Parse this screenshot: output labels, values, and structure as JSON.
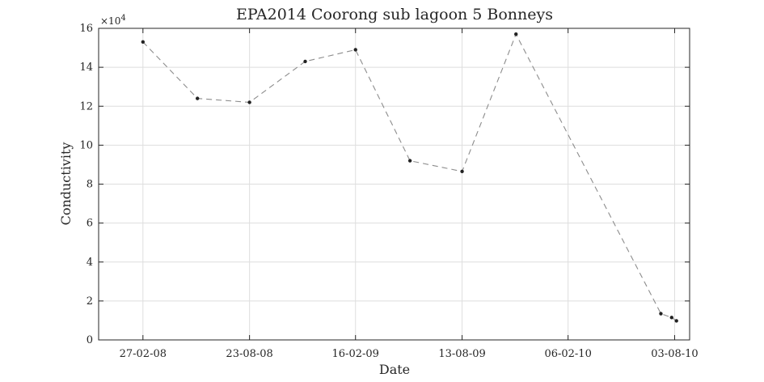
{
  "chart_data": {
    "type": "line",
    "title": "EPA2014 Coorong sub lagoon 5 Bonneys",
    "xlabel": "Date",
    "ylabel": "Conductivity",
    "y_multiplier_label": "×10",
    "y_multiplier_exponent": "4",
    "ylim": [
      0,
      160000
    ],
    "y_ticks": [
      0,
      20000,
      40000,
      60000,
      80000,
      100000,
      120000,
      140000,
      160000
    ],
    "y_tick_labels": [
      "0",
      "2",
      "4",
      "6",
      "8",
      "10",
      "12",
      "14",
      "16"
    ],
    "xlim": [
      "2007-12-15",
      "2010-08-28"
    ],
    "x_ticks": [
      "2008-02-27",
      "2008-08-23",
      "2009-02-16",
      "2009-08-13",
      "2010-02-06",
      "2010-08-03"
    ],
    "x_tick_labels": [
      "27-02-08",
      "23-08-08",
      "16-02-09",
      "13-08-09",
      "06-02-10",
      "03-08-10"
    ],
    "grid": true,
    "line_style": "dashed",
    "line_color": "#8c8c8c",
    "marker_color": "#222222",
    "series": [
      {
        "x": [
          "2008-02-27",
          "2008-05-28",
          "2008-08-23",
          "2008-11-24",
          "2009-02-16",
          "2009-05-18",
          "2009-08-13",
          "2009-11-11",
          "2010-07-11",
          "2010-07-29",
          "2010-08-06"
        ],
        "values": [
          153000,
          124000,
          122000,
          143000,
          149000,
          92000,
          86500,
          157000,
          13500,
          11500,
          9800
        ]
      }
    ]
  }
}
